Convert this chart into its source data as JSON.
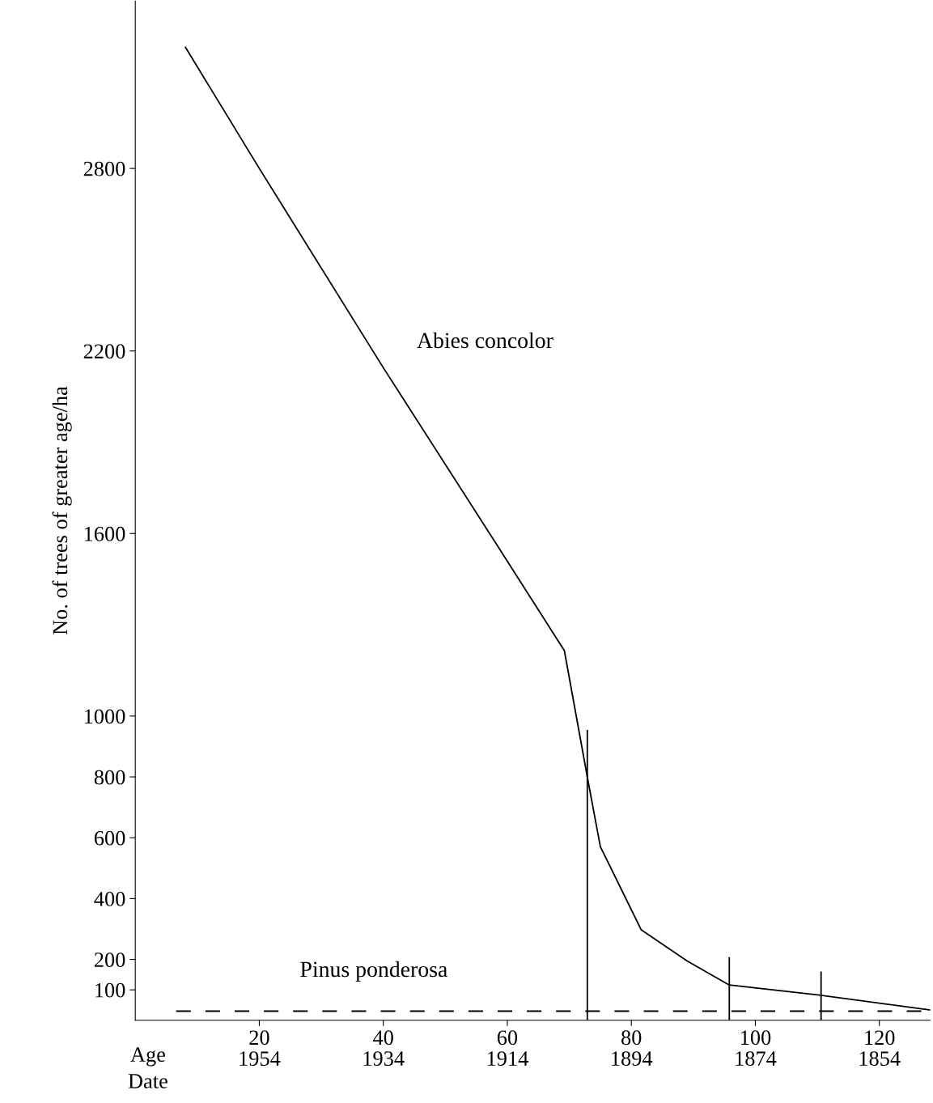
{
  "chart_data": {
    "type": "line",
    "xlabel": "Age",
    "x2label": "Date",
    "ylabel": "No. of trees of greater age/ha",
    "xlim": [
      0,
      128.2
    ],
    "ylim": [
      0,
      3350
    ],
    "x2lim": [
      1974,
      1845.8
    ],
    "xticks": [
      20,
      40,
      60,
      80,
      100,
      120
    ],
    "x2ticks": [
      1954,
      1934,
      1914,
      1894,
      1874,
      1854
    ],
    "yticks": [
      100,
      200,
      400,
      600,
      800,
      1000,
      1600,
      2200,
      2800
    ],
    "grid": false,
    "legend": false,
    "marker": "none",
    "series": [
      {
        "name": "Abies concolor",
        "color": "#000000",
        "line_style": "solid",
        "x": [
          8.1,
          20,
          40,
          58.4,
          69.2,
          72.9,
          75.0,
          81.6,
          89.0,
          95.8,
          110.6,
          128.2
        ],
        "values": [
          3198,
          2800,
          2145,
          1560,
          1215,
          800,
          571,
          297,
          195,
          116,
          82,
          34
        ]
      },
      {
        "name": "Pinus ponderosa",
        "color": "#000000",
        "line_style": "dashed",
        "x": [
          6.6,
          128.2
        ],
        "values": [
          30,
          30
        ]
      },
      {
        "color": "#000000",
        "line_style": "solid",
        "x": [
          72.9,
          72.9
        ],
        "values": [
          0,
          952
        ]
      },
      {
        "color": "#000000",
        "line_style": "solid",
        "x": [
          95.8,
          95.8
        ],
        "values": [
          0,
          205
        ]
      },
      {
        "color": "#000000",
        "line_style": "solid",
        "x": [
          110.6,
          110.6
        ],
        "values": [
          0,
          158
        ]
      }
    ]
  }
}
